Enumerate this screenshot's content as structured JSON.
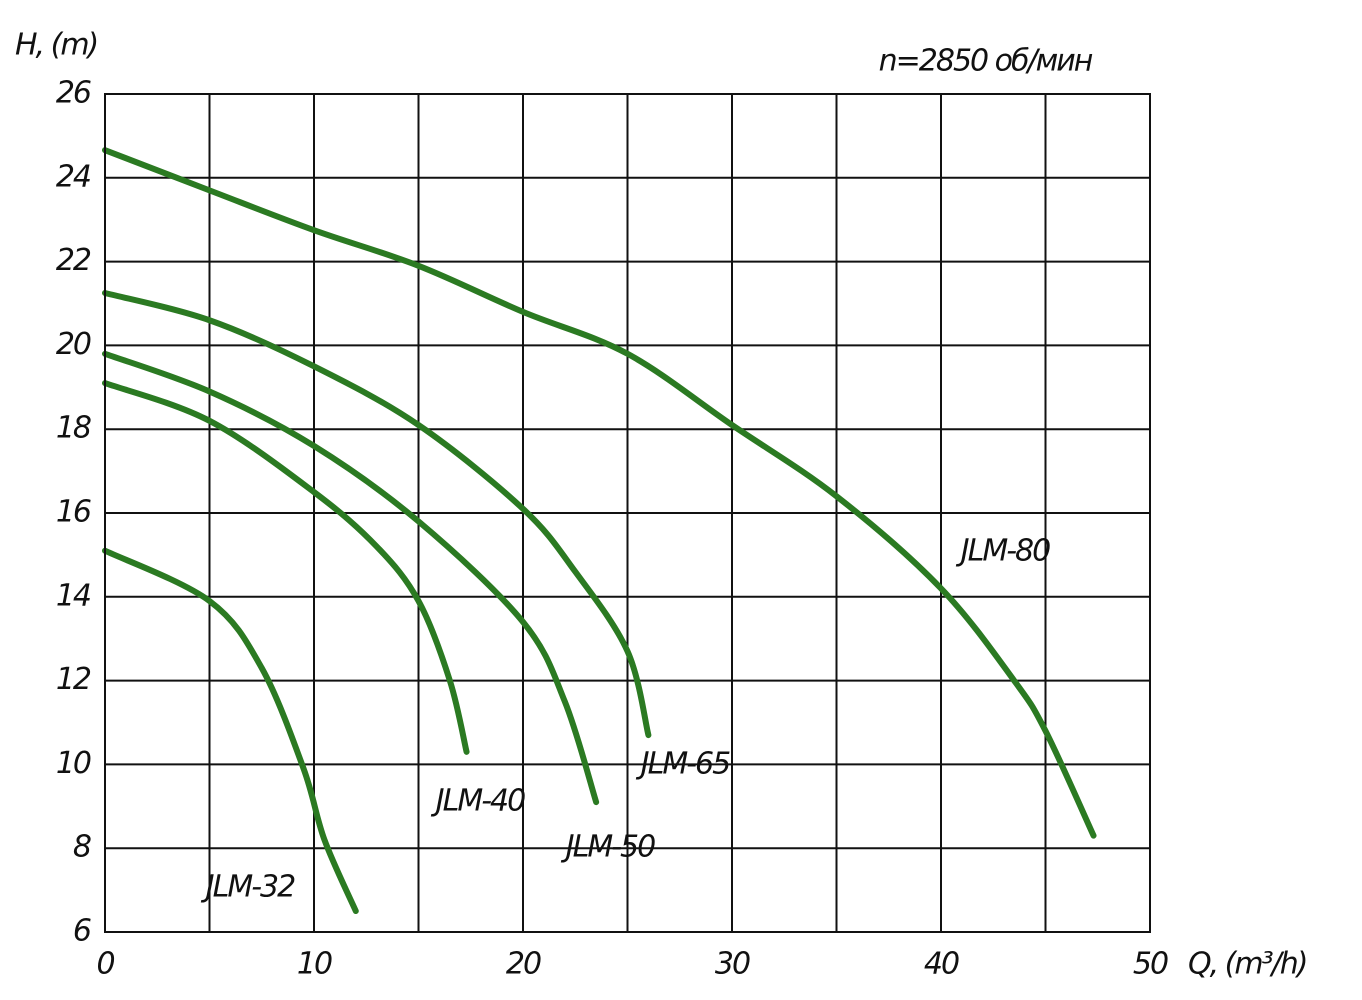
{
  "chart_data": {
    "type": "line",
    "title": "n=2850 об/мин",
    "y_label": "H, (m)",
    "x_label": "Q, (m³/h)",
    "xlim": [
      0,
      50
    ],
    "xticks": [
      0,
      10,
      20,
      30,
      40,
      50
    ],
    "x_minor_ticks": [
      5,
      15,
      25,
      35,
      45
    ],
    "ylim": [
      6,
      26
    ],
    "yticks": [
      6,
      8,
      10,
      12,
      14,
      16,
      18,
      20,
      22,
      24,
      26
    ],
    "grid": true,
    "series": [
      {
        "name": "JLM-80",
        "color": "#2b7a22",
        "x": [
          0,
          5,
          10,
          15,
          20,
          25,
          30,
          35,
          40,
          43.5,
          45,
          47.3
        ],
        "values": [
          24.66,
          23.7,
          22.75,
          21.9,
          20.8,
          19.8,
          18.1,
          16.4,
          14.2,
          12,
          10.8,
          8.3
        ]
      },
      {
        "name": "JLM-65",
        "color": "#2b7a22",
        "x": [
          0,
          5,
          10,
          15,
          20,
          22.5,
          25,
          26
        ],
        "values": [
          21.25,
          20.6,
          19.5,
          18.1,
          16.1,
          14.6,
          12.7,
          10.7
        ]
      },
      {
        "name": "JLM-50",
        "color": "#2b7a22",
        "x": [
          0,
          5,
          10,
          15,
          20,
          22,
          23.5
        ],
        "values": [
          19.8,
          18.9,
          17.6,
          15.8,
          13.4,
          11.5,
          9.1
        ]
      },
      {
        "name": "JLM-40",
        "color": "#2b7a22",
        "x": [
          0,
          5,
          10,
          13,
          15,
          16.5,
          17.3
        ],
        "values": [
          19.1,
          18.2,
          16.5,
          15.2,
          13.9,
          12,
          10.3
        ]
      },
      {
        "name": "JLM-32",
        "color": "#2b7a22",
        "x": [
          0,
          5,
          7.5,
          9.5,
          10.5,
          12
        ],
        "values": [
          15.1,
          13.9,
          12.3,
          9.9,
          8.2,
          6.5
        ]
      }
    ]
  }
}
